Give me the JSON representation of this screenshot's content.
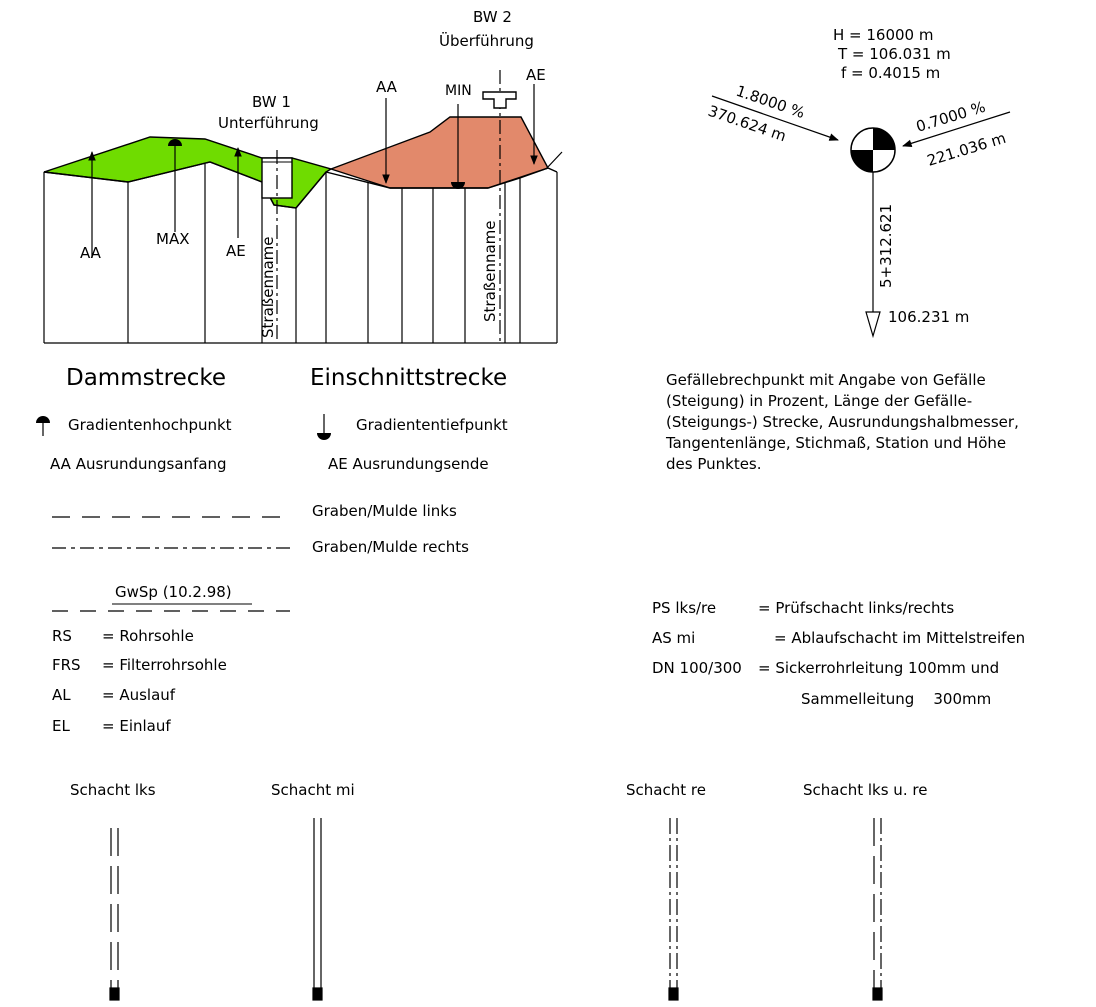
{
  "profile": {
    "bw1": {
      "line1": "BW 1",
      "line2": "Unterführung"
    },
    "bw2": {
      "line1": "BW 2",
      "line2": "Überführung"
    },
    "aa_left": "AA",
    "max": "MAX",
    "ae_left": "AE",
    "aa_right": "AA",
    "min": "MIN",
    "ae_right": "AE",
    "street_left": "Straßenname",
    "street_right": "Straßenname",
    "damm": "Dammstrecke",
    "einschnitt": "Einschnittstrecke",
    "colors": {
      "fill": "#6fdc00",
      "cut": "#e2896b"
    }
  },
  "gradient_point": {
    "h": "H = 16000 m",
    "t": "T = 106.031 m",
    "f": "f = 0.4015 m",
    "left_pct": "1.8000 %",
    "left_len": "370.624 m",
    "right_pct": "0.7000 %",
    "right_len": "221.036 m",
    "station": "5+312.621",
    "height": "106.231 m",
    "description": [
      "Gefällebrechpunkt mit Angabe von Gefälle",
      "(Steigung) in Prozent, Länge der Gefälle-",
      "(Steigungs-) Strecke, Ausrundungshalbmesser,",
      "Tangentenlänge, Stichmaß, Station und Höhe",
      "des Punktes."
    ]
  },
  "legend": {
    "hoch": "Gradientenhochpunkt",
    "tief": "Gradiententiefpunkt",
    "aa": "AA Ausrundungsanfang",
    "ae": "AE Ausrundungsende",
    "graben_links": "Graben/Mulde links",
    "graben_rechts": "Graben/Mulde rechts",
    "gwsp": "GwSp (10.2.98)"
  },
  "abbrev": [
    {
      "key": "RS",
      "val": "= Rohrsohle"
    },
    {
      "key": "FRS",
      "val": "= Filterrohrsohle"
    },
    {
      "key": "AL",
      "val": "= Auslauf"
    },
    {
      "key": "EL",
      "val": "= Einlauf"
    }
  ],
  "abbrev_right": [
    {
      "key": "PS lks/re",
      "val": "= Prüfschacht links/rechts"
    },
    {
      "key": "AS mi",
      "val": "= Ablaufschacht im Mittelstreifen"
    },
    {
      "key": "DN 100/300",
      "val": "= Sickerrohrleitung 100mm und"
    },
    {
      "key": "",
      "val": "Sammelleitung    300mm"
    }
  ],
  "schacht": {
    "lks": "Schacht lks",
    "mi": "Schacht mi",
    "re": "Schacht re",
    "lks_re": "Schacht lks u. re"
  }
}
